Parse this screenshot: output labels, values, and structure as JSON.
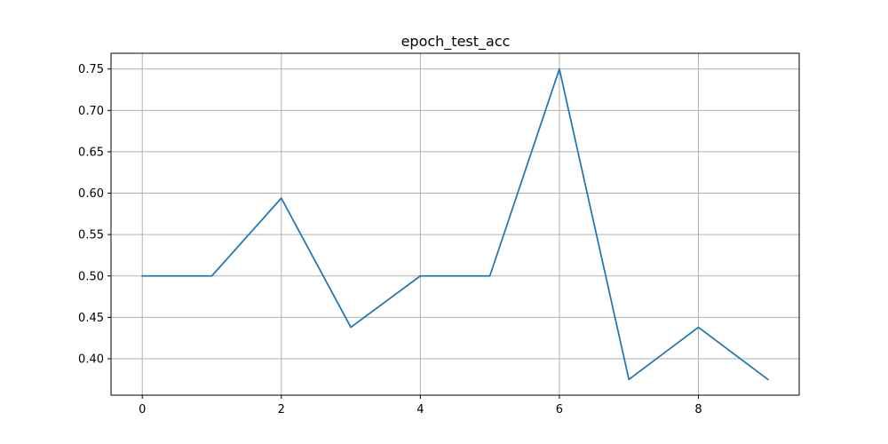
{
  "chart_data": {
    "type": "line",
    "title": "epoch_test_acc",
    "xlabel": "",
    "ylabel": "",
    "xlim": [
      -0.45,
      9.45
    ],
    "ylim": [
      0.356,
      0.769
    ],
    "xticks": [
      0,
      2,
      4,
      6,
      8
    ],
    "xtick_labels": [
      "0",
      "2",
      "4",
      "6",
      "8"
    ],
    "yticks": [
      0.4,
      0.45,
      0.5,
      0.55,
      0.6,
      0.65,
      0.7,
      0.75
    ],
    "ytick_labels": [
      "0.40",
      "0.45",
      "0.50",
      "0.55",
      "0.60",
      "0.65",
      "0.70",
      "0.75"
    ],
    "grid": true,
    "legend": "none",
    "series": [
      {
        "color": "#1f77b4",
        "x": [
          0,
          1,
          2,
          3,
          4,
          5,
          6,
          7,
          8,
          9
        ],
        "y": [
          0.5,
          0.5,
          0.594,
          0.438,
          0.5,
          0.5,
          0.75,
          0.375,
          0.438,
          0.375
        ]
      }
    ]
  }
}
